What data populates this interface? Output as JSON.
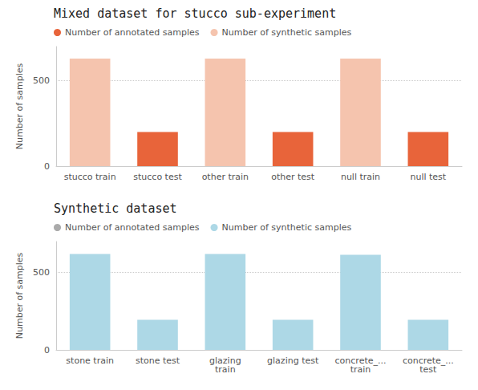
{
  "chart_data": [
    {
      "type": "bar",
      "title": "Mixed dataset for stucco sub-experiment",
      "categories": [
        "stucco train",
        "stucco test",
        "other train",
        "other test",
        "null train",
        "null test"
      ],
      "series": [
        {
          "name": "Number of annotated samples",
          "color": "#E8643A",
          "values": [
            null,
            200,
            null,
            200,
            null,
            200
          ]
        },
        {
          "name": "Number of synthetic samples",
          "color": "#F5C4AE",
          "values": [
            630,
            null,
            630,
            null,
            630,
            null
          ]
        }
      ],
      "ylabel": "Number of samples",
      "ylim": [
        0,
        700
      ],
      "yticks": [
        0,
        500
      ],
      "grid": true,
      "legend": "upper left"
    },
    {
      "type": "bar",
      "title": "Synthetic dataset",
      "categories": [
        "stone train",
        "stone test",
        "glazing\ntrain",
        "glazing test",
        "concrete_...\ntrain",
        "concrete_...\ntest"
      ],
      "series": [
        {
          "name": "Number of annotated samples",
          "color": "#AAAAAA",
          "values": [
            null,
            null,
            null,
            null,
            null,
            null
          ]
        },
        {
          "name": "Number of synthetic samples",
          "color": "#ADD8E6",
          "values": [
            620,
            195,
            620,
            195,
            615,
            195
          ]
        }
      ],
      "ylabel": "Number of samples",
      "ylim": [
        0,
        700
      ],
      "yticks": [
        0,
        500
      ],
      "grid": true,
      "legend": "upper left"
    }
  ]
}
